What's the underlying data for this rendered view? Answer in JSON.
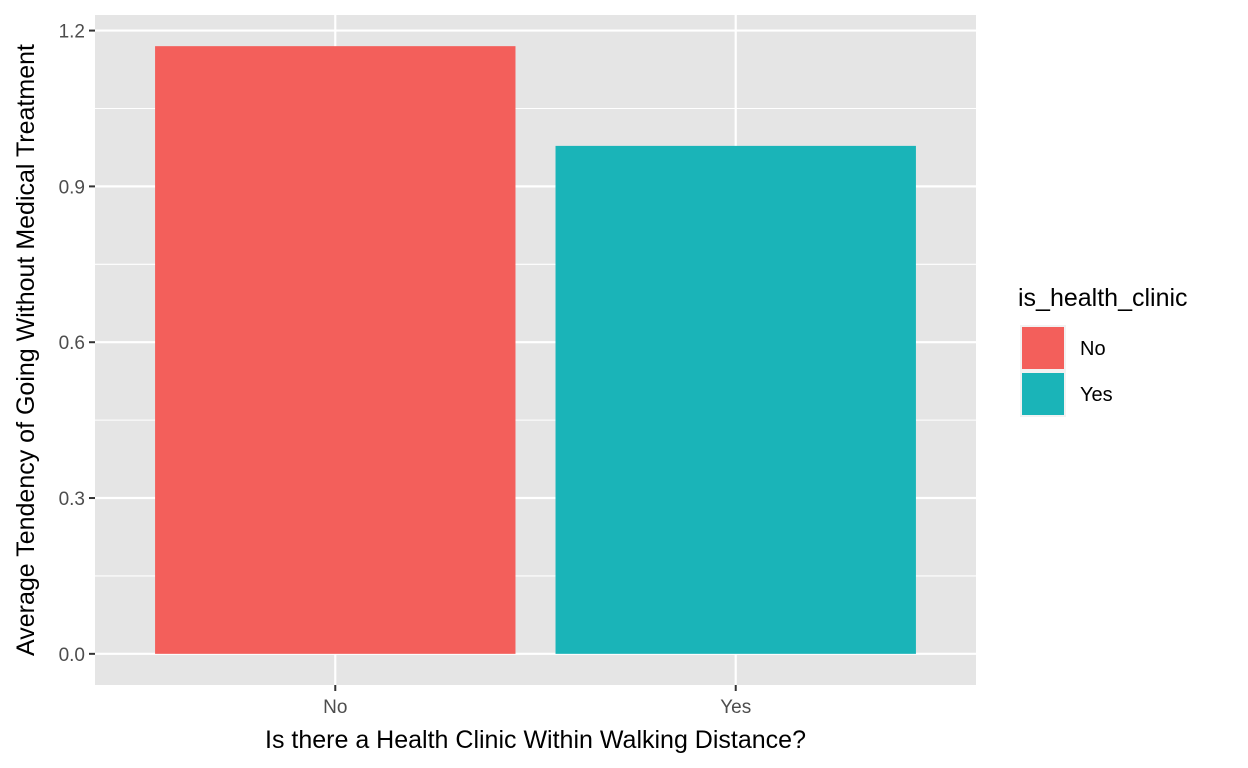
{
  "chart_data": {
    "type": "bar",
    "categories": [
      "No",
      "Yes"
    ],
    "values": [
      1.17,
      0.978
    ],
    "colors": [
      "#F35F5B",
      "#1AB4B8"
    ],
    "xlabel": "Is there a Health Clinic Within Walking Distance?",
    "ylabel": "Average Tendency of Going Without Medical Treatment",
    "ylim": [
      -0.06,
      1.23
    ],
    "yticks": [
      0.0,
      0.3,
      0.6,
      0.9,
      1.2
    ],
    "ytick_labels": [
      "0.0",
      "0.3",
      "0.6",
      "0.9",
      "1.2"
    ],
    "grid": true,
    "panel_background": "#E5E5E5",
    "legend": {
      "title": "is_health_clinic",
      "position": "right",
      "items": [
        {
          "label": "No",
          "color": "#F35F5B"
        },
        {
          "label": "Yes",
          "color": "#1AB4B8"
        }
      ]
    }
  }
}
